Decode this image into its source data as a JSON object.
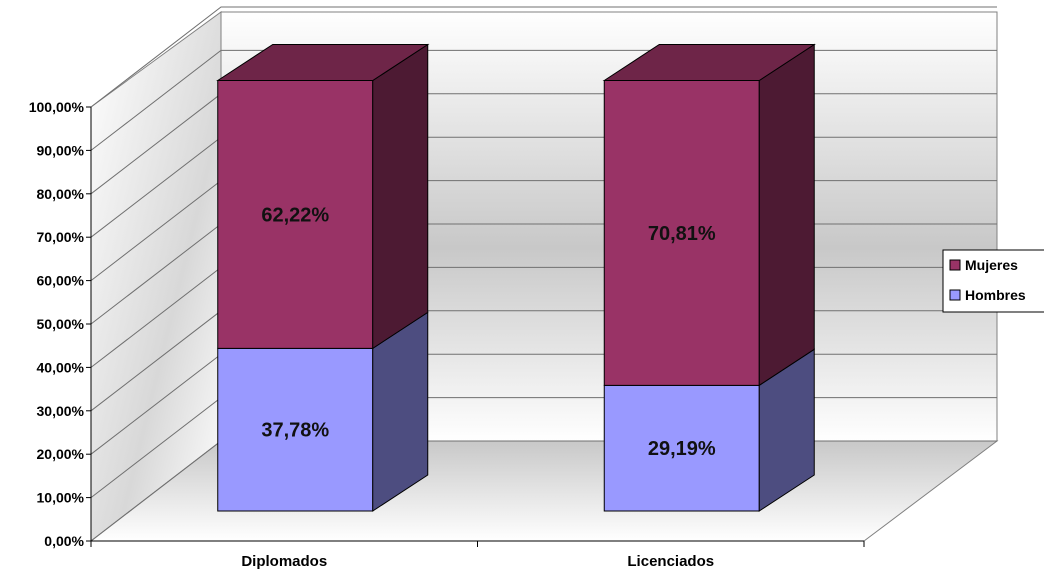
{
  "chart_data": {
    "type": "bar",
    "stacked": true,
    "percent_axis": true,
    "categories": [
      "Diplomados",
      "Licenciados"
    ],
    "series": [
      {
        "name": "Hombres",
        "values": [
          37.78,
          29.19
        ],
        "labels": [
          "37,78%",
          "29,19%"
        ],
        "color": "#9999ff",
        "side_color": "#4d4d80",
        "top_color": "#7a7acc"
      },
      {
        "name": "Mujeres",
        "values": [
          62.22,
          70.81
        ],
        "labels": [
          "62,22%",
          "70,81%"
        ],
        "color": "#993366",
        "side_color": "#4d1a33",
        "top_color": "#6e2548"
      }
    ],
    "ylim": [
      0,
      100
    ],
    "yticks": [
      0,
      10,
      20,
      30,
      40,
      50,
      60,
      70,
      80,
      90,
      100
    ],
    "ytick_labels": [
      "0,00%",
      "10,00%",
      "20,00%",
      "30,00%",
      "40,00%",
      "50,00%",
      "60,00%",
      "70,00%",
      "80,00%",
      "90,00%",
      "100,00%"
    ],
    "grid": true,
    "legend_position": "right",
    "legend_order": [
      "Mujeres",
      "Hombres"
    ],
    "three_d": true
  }
}
